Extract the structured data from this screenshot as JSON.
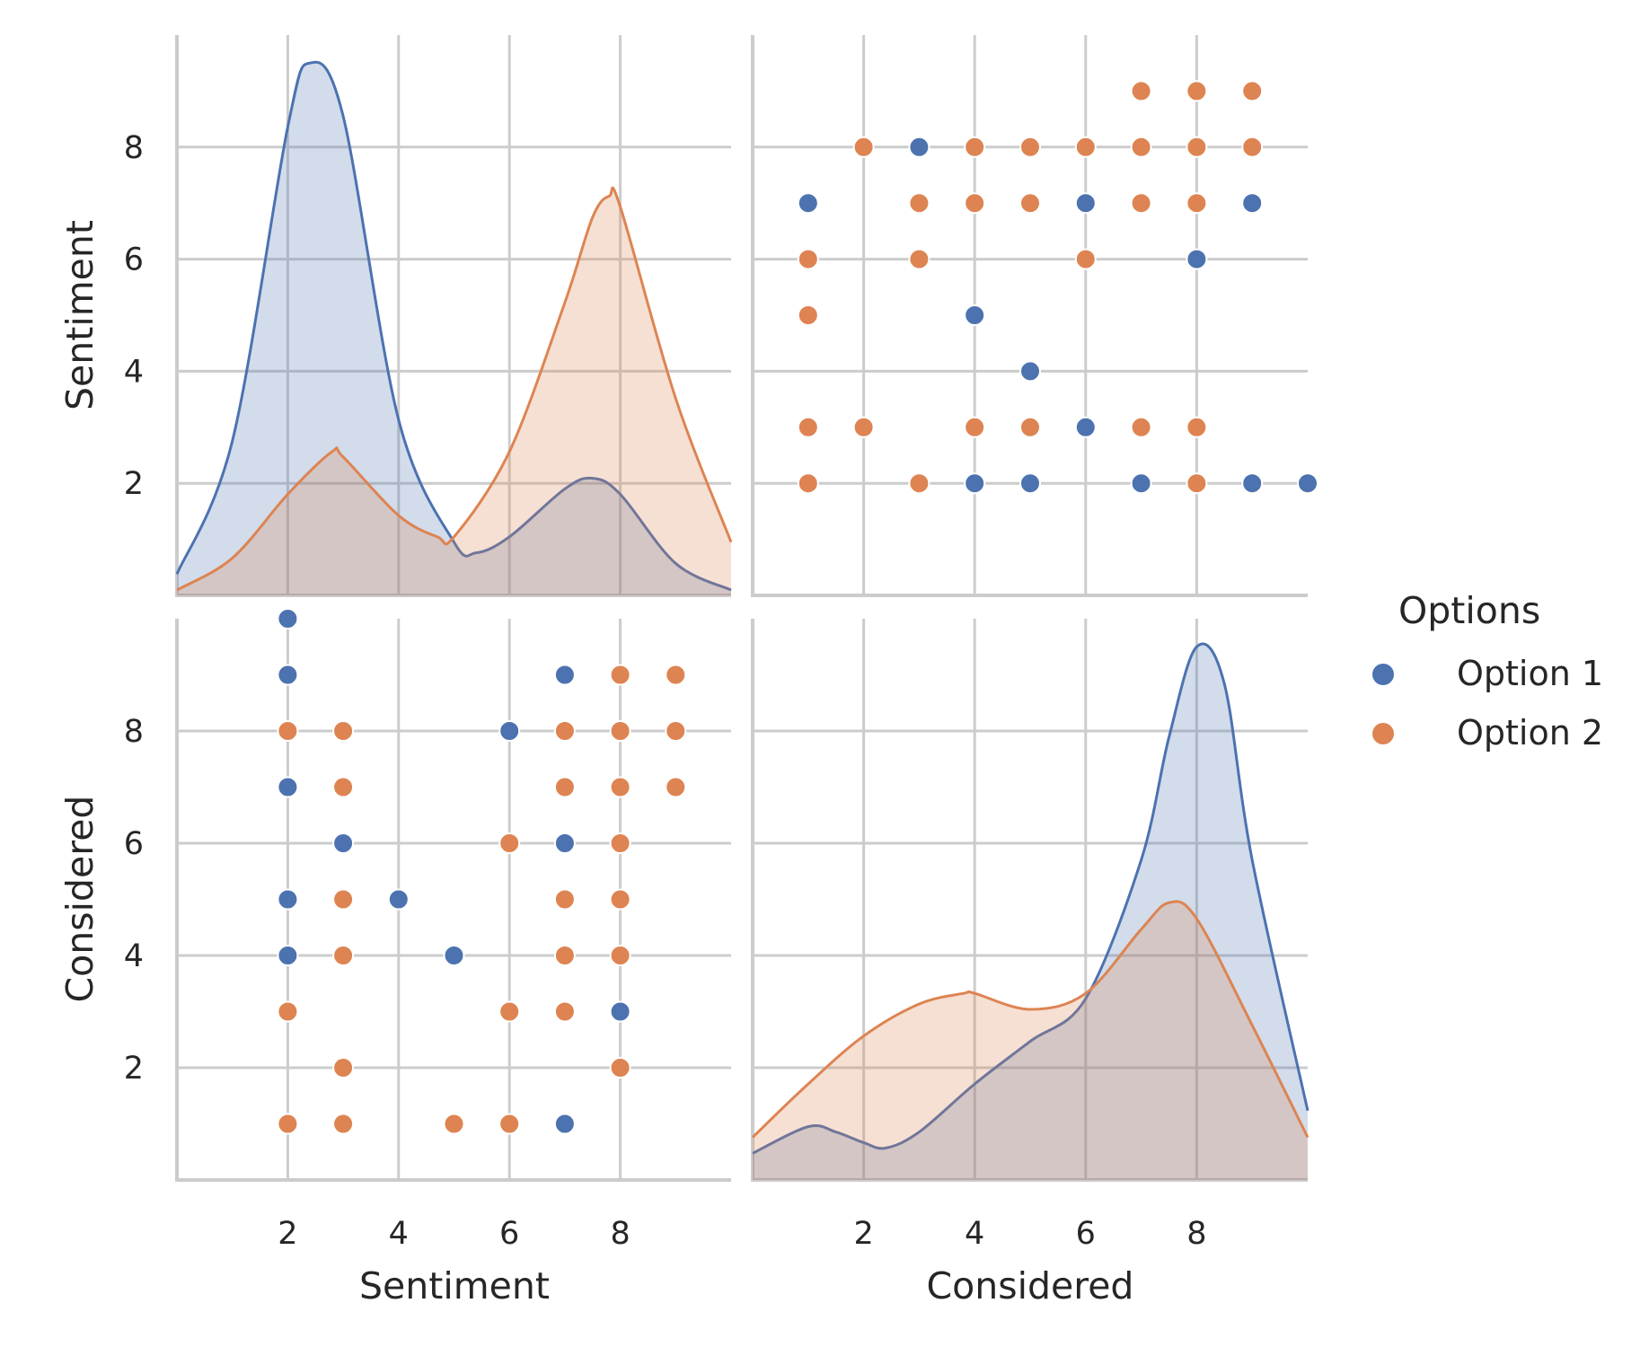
{
  "chart_data": {
    "type": "scatter",
    "layout": "pairplot",
    "variables": [
      "Sentiment",
      "Considered"
    ],
    "axis_range": [
      0,
      10
    ],
    "ticks": [
      2,
      4,
      6,
      8
    ],
    "tick_labels": [
      "2",
      "4",
      "6",
      "8"
    ],
    "grid": true,
    "legend": {
      "title": "Options",
      "placement": "right",
      "entries": [
        {
          "name": "Option 1",
          "color": "#4c72b0"
        },
        {
          "name": "Option 2",
          "color": "#dd8452"
        }
      ]
    },
    "points": {
      "Option 1": [
        [
          2,
          10
        ],
        [
          2,
          9
        ],
        [
          7,
          9
        ],
        [
          6,
          8
        ],
        [
          2,
          7
        ],
        [
          3,
          6
        ],
        [
          7,
          6
        ],
        [
          2,
          5
        ],
        [
          4,
          5
        ],
        [
          2,
          4
        ],
        [
          5,
          4
        ],
        [
          8,
          3
        ],
        [
          7,
          1
        ]
      ],
      "Option 2": [
        [
          8,
          9
        ],
        [
          9,
          9
        ],
        [
          2,
          8
        ],
        [
          3,
          8
        ],
        [
          7,
          8
        ],
        [
          8,
          8
        ],
        [
          9,
          8
        ],
        [
          3,
          7
        ],
        [
          7,
          7
        ],
        [
          8,
          7
        ],
        [
          9,
          7
        ],
        [
          6,
          6
        ],
        [
          8,
          6
        ],
        [
          3,
          5
        ],
        [
          7,
          5
        ],
        [
          8,
          5
        ],
        [
          3,
          4
        ],
        [
          7,
          4
        ],
        [
          8,
          4
        ],
        [
          2,
          3
        ],
        [
          6,
          3
        ],
        [
          7,
          3
        ],
        [
          3,
          2
        ],
        [
          8,
          2
        ],
        [
          2,
          1
        ],
        [
          3,
          1
        ],
        [
          5,
          1
        ],
        [
          6,
          1
        ]
      ]
    },
    "points_note_order": [
      "Sentiment",
      "Considered"
    ],
    "kde": {
      "Sentiment": {
        "Option 1": {
          "x": [
            0,
            1,
            2,
            2.4,
            3,
            4,
            5,
            5.4,
            6,
            7,
            7.5,
            8,
            9,
            10
          ],
          "density_relative": [
            0.04,
            0.29,
            0.88,
            1.0,
            0.9,
            0.33,
            0.1,
            0.08,
            0.11,
            0.2,
            0.22,
            0.19,
            0.06,
            0.01
          ]
        },
        "Option 2": {
          "x": [
            0,
            1,
            2,
            2.8,
            3,
            4,
            4.7,
            5,
            6,
            7,
            7.5,
            7.8,
            8,
            9,
            10
          ],
          "density_relative": [
            0.01,
            0.07,
            0.19,
            0.27,
            0.26,
            0.15,
            0.11,
            0.11,
            0.27,
            0.55,
            0.71,
            0.75,
            0.73,
            0.37,
            0.1
          ]
        }
      },
      "Considered": {
        "Option 1": {
          "x": [
            0,
            1,
            1.5,
            2,
            2.4,
            3,
            4,
            5,
            6,
            7,
            7.5,
            8,
            8.5,
            9,
            10
          ],
          "density_relative": [
            0.05,
            0.1,
            0.09,
            0.07,
            0.06,
            0.09,
            0.18,
            0.26,
            0.34,
            0.6,
            0.83,
            1.0,
            0.93,
            0.6,
            0.13
          ]
        },
        "Option 2": {
          "x": [
            0,
            1,
            2,
            3,
            3.8,
            4,
            5,
            6,
            7,
            7.5,
            8,
            9,
            10
          ],
          "density_relative": [
            0.08,
            0.18,
            0.27,
            0.33,
            0.35,
            0.35,
            0.32,
            0.35,
            0.47,
            0.52,
            0.49,
            0.29,
            0.08
          ]
        }
      }
    }
  }
}
